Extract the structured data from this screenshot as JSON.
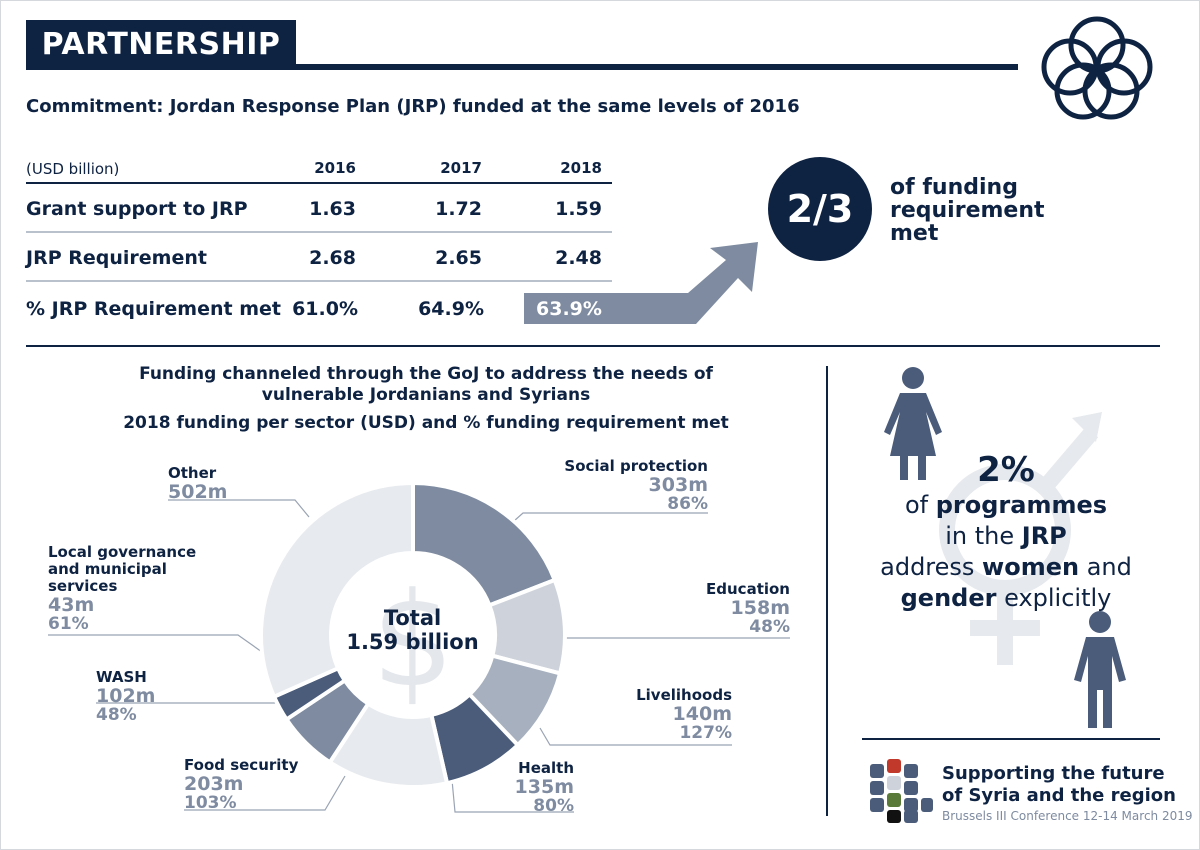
{
  "header": {
    "title": "PARTNERSHIP"
  },
  "commitment": "Commitment: Jordan Response Plan (JRP) funded at the same levels of 2016",
  "table": {
    "unit_label": "(USD billion)",
    "years": [
      "2016",
      "2017",
      "2018"
    ],
    "rows": [
      {
        "label": "Grant support to JRP",
        "values": [
          "1.63",
          "1.72",
          "1.59"
        ]
      },
      {
        "label": "JRP Requirement",
        "values": [
          "2.68",
          "2.65",
          "2.48"
        ]
      },
      {
        "label": "% JRP Requirement met",
        "values": [
          "61.0%",
          "64.9%",
          "63.9%"
        ]
      }
    ]
  },
  "callout": {
    "fraction": "2/3",
    "text_l1": "of funding",
    "text_l2": "requirement",
    "text_l3": "met"
  },
  "section": {
    "heading_l1": "Funding channeled through the GoJ to address the needs of",
    "heading_l2": "vulnerable Jordanians and Syrians",
    "subheading": "2018 funding per sector (USD) and % funding requirement met"
  },
  "chart_data": {
    "type": "pie",
    "title": "2018 funding per sector (USD) and % funding requirement met",
    "center_label_l1": "Total",
    "center_label_l2": "1.59 billion",
    "unit": "million USD",
    "slices": [
      {
        "name": "Social protection",
        "value": 303,
        "value_label": "303m",
        "pct_label": "86%",
        "color": "#7e8ba0"
      },
      {
        "name": "Education",
        "value": 158,
        "value_label": "158m",
        "pct_label": "48%",
        "color": "#ced3db"
      },
      {
        "name": "Livelihoods",
        "value": 140,
        "value_label": "140m",
        "pct_label": "127%",
        "color": "#a6b0be"
      },
      {
        "name": "Health",
        "value": 135,
        "value_label": "135m",
        "pct_label": "80%",
        "color": "#4a5c7a"
      },
      {
        "name": "Food security",
        "value": 203,
        "value_label": "203m",
        "pct_label": "103%",
        "color": "#e7eaee"
      },
      {
        "name": "WASH",
        "value": 102,
        "value_label": "102m",
        "pct_label": "48%",
        "color": "#7e8ba0"
      },
      {
        "name": "Local governance and municipal services",
        "value": 43,
        "value_label": "43m",
        "pct_label": "61%",
        "color": "#4a5c7a"
      },
      {
        "name": "Other",
        "value": 502,
        "value_label": "502m",
        "pct_label": "",
        "color": "#e7eaee"
      }
    ]
  },
  "labels": {
    "local_gov_l1": "Local governance",
    "local_gov_l2": "and municipal",
    "local_gov_l3": "services"
  },
  "gender": {
    "pct": "2%",
    "l2_a": "of ",
    "l2_b": "programmes",
    "l3_a": "in the ",
    "l3_b": "JRP",
    "l4_a": "address ",
    "l4_b": "women",
    "l4_c": " and",
    "l5_a": "gender",
    "l5_b": " explicitly"
  },
  "footer": {
    "l1": "Supporting the future",
    "l2": "of Syria and the region",
    "l3": "Brussels III Conference 12-14 March 2019"
  },
  "colors": {
    "navy": "#0e2242",
    "slate": "#7e8ba0",
    "accent_red": "#c0392b",
    "accent_green": "#5a7a3a"
  }
}
